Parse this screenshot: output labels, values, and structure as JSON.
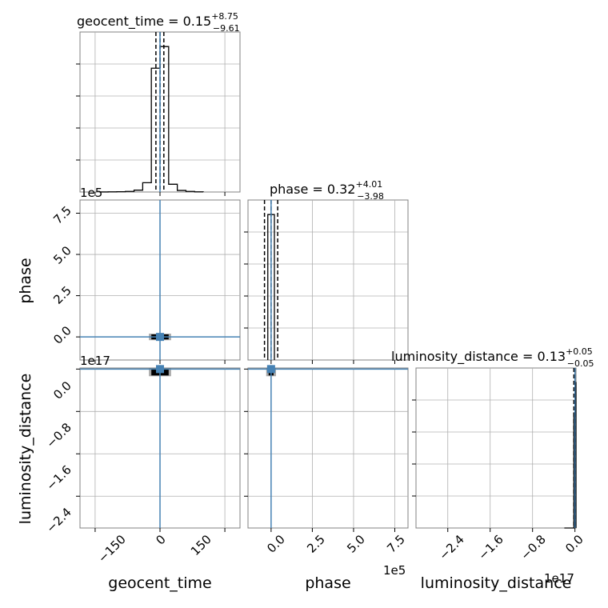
{
  "chart_data": {
    "type": "corner",
    "parameters": [
      "geocent_time",
      "phase",
      "luminosity_distance"
    ],
    "grid": true,
    "colors": {
      "hist": "#000000",
      "truth": "#4682b4",
      "grid": "#b0b0b0",
      "density": "#000000"
    },
    "titles": [
      {
        "param": "geocent_time",
        "text": "geocent_time = 0.15",
        "plus": "+8.75",
        "minus": "−9.61"
      },
      {
        "param": "phase",
        "text": "phase = 0.32",
        "plus": "+4.01",
        "minus": "−3.98"
      },
      {
        "param": "luminosity_distance",
        "text": "luminosity_distance = 0.13",
        "plus": "+0.05",
        "minus": "−0.05"
      }
    ],
    "axes": {
      "geocent_time": {
        "label": "geocent_time",
        "range": [
          -185,
          185
        ],
        "ticks": [
          -150,
          0,
          150
        ],
        "tick_labels": [
          "−150",
          "0",
          "150"
        ],
        "offset_text": ""
      },
      "phase": {
        "label": "phase",
        "range": [
          -1.4,
          8.3
        ],
        "ticks": [
          0,
          2.5,
          5,
          7.5
        ],
        "tick_labels": [
          "0.0",
          "2.5",
          "5.0",
          "7.5"
        ],
        "offset_text": "1e5"
      },
      "luminosity_distance": {
        "label": "luminosity_distance",
        "range": [
          -3.0,
          0.02
        ],
        "ticks": [
          -2.4,
          -1.6,
          -0.8,
          0
        ],
        "tick_labels": [
          "−2.4",
          "−1.6",
          "−0.8",
          "0.0"
        ],
        "offset_text": "1e17"
      }
    },
    "truths": {
      "geocent_time": 0,
      "phase": 0,
      "luminosity_distance": 0
    },
    "quantiles": {
      "geocent_time": [
        -9.46,
        0.15,
        8.9
      ],
      "phase": [
        -0.4,
        0.0,
        0.4
      ],
      "luminosity_distance": [
        -0.02,
        0,
        0
      ]
    },
    "histograms": {
      "geocent_time": {
        "bin_edges": [
          -140,
          -120,
          -100,
          -80,
          -60,
          -40,
          -20,
          0,
          20,
          40,
          60,
          80,
          100
        ],
        "counts": [
          0.2,
          0.5,
          1,
          2,
          6,
          30,
          400,
          470,
          25,
          5,
          2,
          0.5
        ]
      },
      "phase": {
        "bin_edges": [
          -0.2,
          0.0,
          0.2
        ],
        "counts": [
          980,
          980
        ]
      },
      "luminosity_distance": {
        "bin_edges": [
          -0.2,
          -0.02,
          0.0,
          0.02
        ],
        "counts": [
          0,
          380,
          480
        ]
      }
    },
    "density_blobs": {
      "phase_vs_geocent_time": {
        "x_range": [
          -20,
          20
        ],
        "y_range": [
          -0.15,
          0.15
        ]
      },
      "luminosity_distance_vs_geocent_time": {
        "x_range": [
          -20,
          20
        ],
        "y_range": [
          -0.12,
          0.0
        ]
      },
      "luminosity_distance_vs_phase": {
        "x_range": [
          -0.15,
          0.15
        ],
        "y_range": [
          -0.12,
          0.0
        ]
      }
    }
  }
}
